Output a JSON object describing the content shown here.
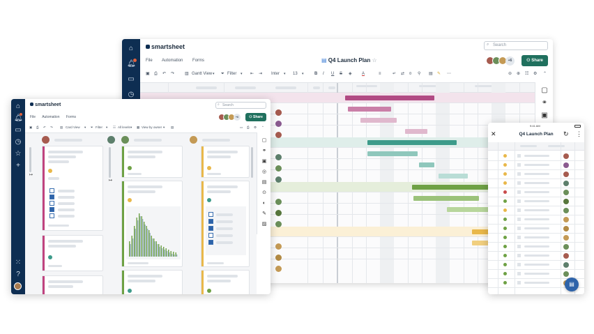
{
  "colors": {
    "nav": "#0e2e52",
    "share": "#20705e",
    "pink": "#c0437f",
    "teal": "#3d9b8a",
    "green": "#6ea144",
    "gold": "#e9b84a",
    "blue": "#2e63a9"
  },
  "main_window": {
    "brand": "smartsheet",
    "menu": [
      "File",
      "Automation",
      "Forms"
    ],
    "doc_title": "Q4 Launch Plan",
    "search_placeholder": "Search",
    "share_label": "Share",
    "extra_collaborators": "+6",
    "toolbar": {
      "view_label": "Gantt View",
      "filter_label": "Filter",
      "font_name": "Inter",
      "font_size": "13"
    },
    "icons": [
      "home-icon",
      "bell-icon",
      "folder-icon",
      "clock-icon",
      "comment-icon",
      "link-icon",
      "briefcase-icon"
    ]
  },
  "board_window": {
    "brand": "smartsheet",
    "menu": [
      "File",
      "Automation",
      "Forms"
    ],
    "search_placeholder": "Search",
    "share_label": "Share",
    "extra_collaborators": "+6",
    "toolbar": {
      "view_label": "Card View",
      "filter_label": "Filter",
      "levels_label": "All levels",
      "viewby_label": "View by owner"
    },
    "icons": [
      "home-icon",
      "bell-icon",
      "folder-icon",
      "clock-icon",
      "star-icon",
      "plus-icon",
      "apps-icon",
      "help-icon"
    ]
  },
  "phone": {
    "time": "9:41 AM",
    "title": "Q4 Launch Plan",
    "icons": [
      "close-icon",
      "refresh-icon",
      "more-icon",
      "chat-icon"
    ]
  }
}
